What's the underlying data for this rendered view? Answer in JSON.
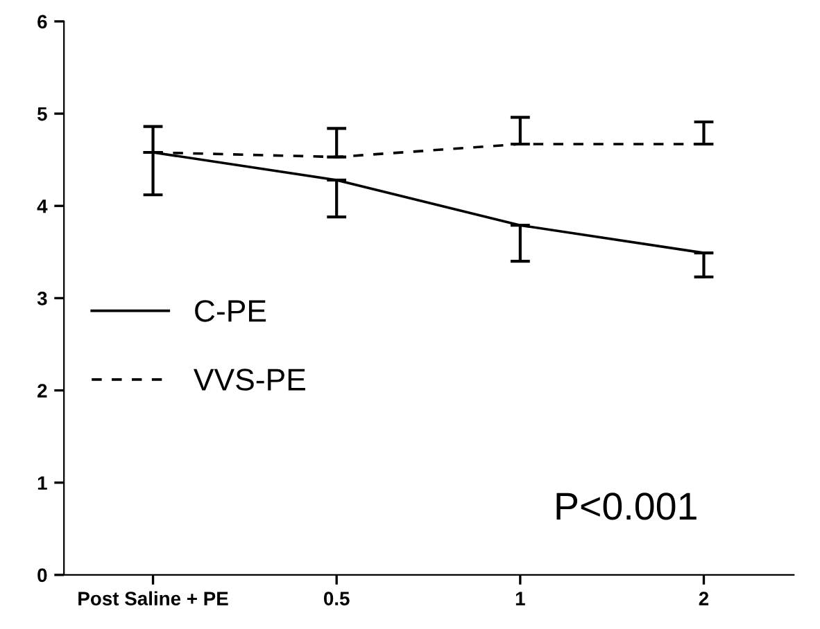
{
  "chart_data": {
    "type": "line",
    "categories": [
      "Post Saline + PE",
      "0.5",
      "1",
      "2"
    ],
    "series": [
      {
        "name": "C-PE",
        "color": "#000000",
        "line_style": "solid",
        "values": [
          4.58,
          4.28,
          3.79,
          3.49
        ],
        "errors": [
          [
            4.12,
            4.58
          ],
          [
            3.88,
            4.28
          ],
          [
            3.4,
            3.79
          ],
          [
            3.23,
            3.49
          ]
        ]
      },
      {
        "name": "VVS-PE",
        "color": "#000000",
        "line_style": "dashed",
        "values": [
          4.58,
          4.53,
          4.67,
          4.67
        ],
        "errors": [
          [
            4.58,
            4.86
          ],
          [
            4.53,
            4.84
          ],
          [
            4.67,
            4.96
          ],
          [
            4.67,
            4.91
          ]
        ]
      }
    ],
    "ylim": [
      0,
      6
    ],
    "yticks": [
      0,
      1,
      2,
      3,
      4,
      5,
      6
    ],
    "annotations": [
      "P<0.001"
    ],
    "legend": "left",
    "grid": false,
    "marker": "none"
  }
}
